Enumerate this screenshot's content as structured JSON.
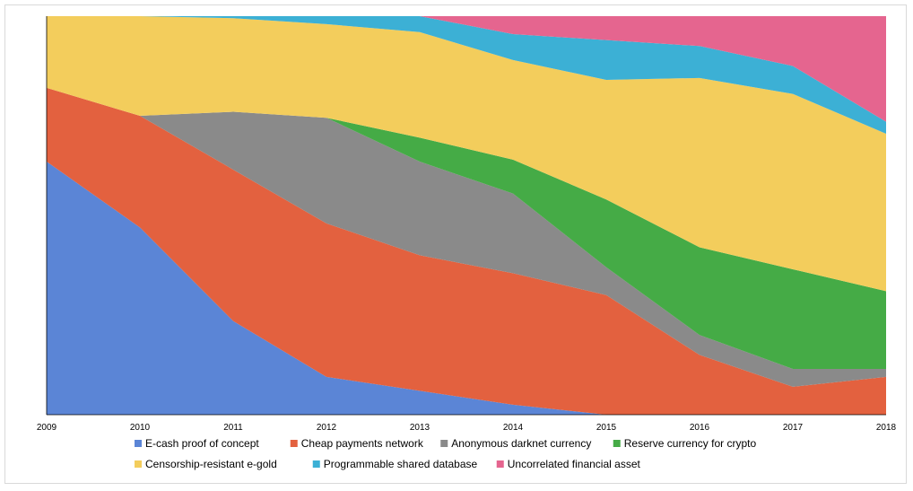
{
  "chart_data": {
    "type": "area",
    "stacked": true,
    "normalized": true,
    "title": "",
    "xlabel": "",
    "ylabel": "",
    "x": [
      "2009",
      "2010",
      "2011",
      "2012",
      "2013",
      "2014",
      "2015",
      "2016",
      "2017",
      "2018"
    ],
    "y_axis_visible": false,
    "grid": false,
    "legend_position": "bottom",
    "series": [
      {
        "name": "E-cash proof of concept",
        "color": "#5b85d6",
        "values": [
          63.5,
          47,
          23.5,
          9.5,
          6,
          2.5,
          0,
          0,
          0,
          0
        ]
      },
      {
        "name": "Cheap payments network",
        "color": "#e3613f",
        "values": [
          18.5,
          28,
          38,
          38.5,
          34,
          33,
          30,
          15,
          7,
          9.5
        ]
      },
      {
        "name": "Anonymous darknet currency",
        "color": "#8a8a8a",
        "values": [
          0,
          0,
          14.5,
          26.5,
          23.5,
          20,
          7,
          5,
          4.5,
          2
        ]
      },
      {
        "name": "Reserve currency for crypto",
        "color": "#45ab46",
        "values": [
          0,
          0,
          0,
          0,
          6,
          8.5,
          17,
          22,
          25,
          19.5
        ]
      },
      {
        "name": "Censorship-resistant e-gold",
        "color": "#f3cd5c",
        "values": [
          18,
          25,
          23.5,
          23.5,
          26.5,
          25,
          30,
          42.5,
          44,
          39.5
        ]
      },
      {
        "name": "Programmable shared database",
        "color": "#3cb0d5",
        "values": [
          0,
          0,
          0.5,
          2,
          4,
          6.5,
          10,
          8,
          7,
          3
        ]
      },
      {
        "name": "Uncorrelated financial asset",
        "color": "#e5658f",
        "values": [
          0,
          0,
          0,
          0,
          0,
          4.5,
          6,
          7.5,
          12.5,
          26.5
        ]
      }
    ]
  }
}
